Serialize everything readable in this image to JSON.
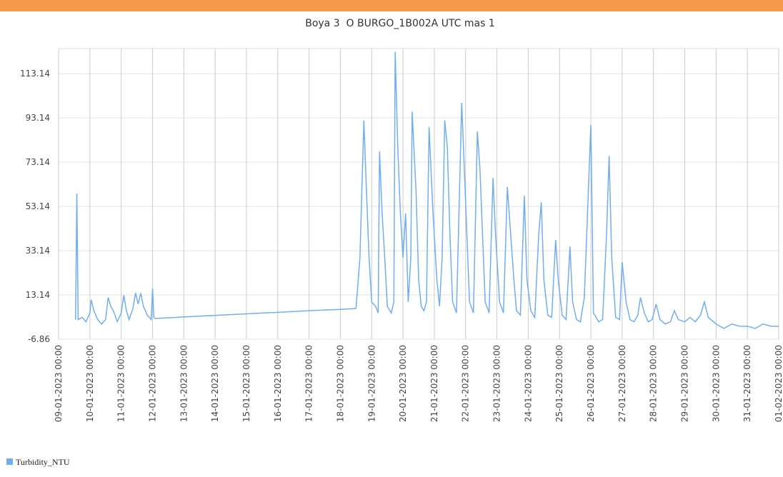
{
  "chart_data": {
    "type": "line",
    "title": "Boya 3  O BURGO_1B002A UTC mas 1",
    "x": [
      "09-01-2023 13:00",
      "09-01-2023 14:00",
      "09-01-2023 15:00",
      "09-01-2023 18:00",
      "09-01-2023 21:00",
      "10-01-2023 00:00",
      "10-01-2023 01:00",
      "10-01-2023 03:00",
      "10-01-2023 06:00",
      "10-01-2023 09:00",
      "10-01-2023 12:00",
      "10-01-2023 14:00",
      "10-01-2023 16:00",
      "10-01-2023 18:00",
      "10-01-2023 21:00",
      "11-01-2023 00:00",
      "11-01-2023 02:00",
      "11-01-2023 04:00",
      "11-01-2023 06:00",
      "11-01-2023 09:00",
      "11-01-2023 11:00",
      "11-01-2023 13:00",
      "11-01-2023 15:00",
      "11-01-2023 17:00",
      "11-01-2023 20:00",
      "11-01-2023 23:00",
      "12-01-2023 00:00",
      "12-01-2023 01:00",
      "12-01-2023 02:00",
      "13-01-2023 00:00",
      "14-01-2023 00:00",
      "15-01-2023 00:00",
      "16-01-2023 00:00",
      "17-01-2023 00:00",
      "18-01-2023 00:00",
      "18-01-2023 12:00",
      "18-01-2023 15:00",
      "18-01-2023 18:00",
      "18-01-2023 20:00",
      "18-01-2023 22:00",
      "19-01-2023 00:00",
      "19-01-2023 03:00",
      "19-01-2023 05:00",
      "19-01-2023 06:00",
      "19-01-2023 08:00",
      "19-01-2023 10:00",
      "19-01-2023 12:00",
      "19-01-2023 15:00",
      "19-01-2023 17:00",
      "19-01-2023 18:00",
      "19-01-2023 20:00",
      "19-01-2023 22:00",
      "20-01-2023 00:00",
      "20-01-2023 02:00",
      "20-01-2023 04:00",
      "20-01-2023 06:00",
      "20-01-2023 07:00",
      "20-01-2023 10:00",
      "20-01-2023 12:00",
      "20-01-2023 14:00",
      "20-01-2023 16:00",
      "20-01-2023 18:00",
      "20-01-2023 20:00",
      "20-01-2023 23:00",
      "21-01-2023 02:00",
      "21-01-2023 04:00",
      "21-01-2023 06:00",
      "21-01-2023 08:00",
      "21-01-2023 10:00",
      "21-01-2023 12:00",
      "21-01-2023 14:00",
      "21-01-2023 17:00",
      "21-01-2023 21:00",
      "21-01-2023 23:00",
      "22-01-2023 01:00",
      "22-01-2023 03:00",
      "22-01-2023 06:00",
      "22-01-2023 09:00",
      "22-01-2023 11:00",
      "22-01-2023 13:00",
      "22-01-2023 15:00",
      "22-01-2023 18:00",
      "22-01-2023 21:00",
      "22-01-2023 23:00",
      "23-01-2023 02:00",
      "23-01-2023 05:00",
      "23-01-2023 08:00",
      "23-01-2023 10:00",
      "23-01-2023 13:00",
      "23-01-2023 15:00",
      "23-01-2023 18:00",
      "23-01-2023 21:00",
      "23-01-2023 23:00",
      "24-01-2023 02:00",
      "24-01-2023 05:00",
      "24-01-2023 08:00",
      "24-01-2023 10:00",
      "24-01-2023 12:00",
      "24-01-2023 15:00",
      "24-01-2023 18:00",
      "24-01-2023 21:00",
      "24-01-2023 23:00",
      "25-01-2023 02:00",
      "25-01-2023 05:00",
      "25-01-2023 08:00",
      "25-01-2023 10:00",
      "25-01-2023 13:00",
      "25-01-2023 16:00",
      "25-01-2023 19:00",
      "26-01-2023 00:00",
      "26-01-2023 02:00",
      "26-01-2023 06:00",
      "26-01-2023 09:00",
      "26-01-2023 12:00",
      "26-01-2023 14:00",
      "26-01-2023 16:00",
      "26-01-2023 19:00",
      "26-01-2023 22:00",
      "27-01-2023 00:00",
      "27-01-2023 03:00",
      "27-01-2023 06:00",
      "27-01-2023 09:00",
      "27-01-2023 12:00",
      "27-01-2023 14:00",
      "27-01-2023 17:00",
      "27-01-2023 20:00",
      "27-01-2023 23:00",
      "28-01-2023 02:00",
      "28-01-2023 05:00",
      "28-01-2023 09:00",
      "28-01-2023 13:00",
      "28-01-2023 16:00",
      "28-01-2023 19:00",
      "29-01-2023 00:00",
      "29-01-2023 04:00",
      "29-01-2023 08:00",
      "29-01-2023 12:00",
      "29-01-2023 15:00",
      "29-01-2023 18:00",
      "30-01-2023 00:00",
      "30-01-2023 06:00",
      "30-01-2023 12:00",
      "30-01-2023 18:00",
      "31-01-2023 00:00",
      "31-01-2023 06:00",
      "31-01-2023 12:00",
      "31-01-2023 18:00",
      "01-02-2023 00:00"
    ],
    "series": [
      {
        "name": "Turbidity_NTU",
        "color": "#72aeee",
        "values": [
          2,
          59,
          2,
          3,
          1,
          5,
          11,
          6,
          2,
          0,
          2,
          12,
          8,
          6,
          1,
          5,
          13,
          6,
          2,
          7,
          14,
          9,
          14,
          8,
          4,
          2,
          16,
          3,
          2.5,
          3.2,
          3.9,
          4.6,
          5.3,
          6,
          6.6,
          7,
          30,
          92,
          60,
          30,
          10,
          8,
          5,
          78,
          50,
          30,
          8,
          5,
          10,
          123,
          80,
          50,
          30,
          50,
          10,
          30,
          96,
          60,
          20,
          8,
          6,
          10,
          89,
          50,
          20,
          8,
          30,
          92,
          80,
          40,
          10,
          5,
          100,
          70,
          40,
          10,
          5,
          87,
          70,
          40,
          10,
          5,
          66,
          40,
          10,
          5,
          62,
          45,
          20,
          6,
          4,
          58,
          20,
          6,
          3,
          40,
          55,
          20,
          4,
          3,
          38,
          20,
          4,
          2,
          35,
          10,
          2,
          1,
          12,
          90,
          5,
          1,
          2,
          40,
          76,
          30,
          3,
          2,
          28,
          10,
          2,
          1,
          4,
          12,
          5,
          1,
          2,
          9,
          2,
          0,
          1,
          6,
          2,
          1,
          3,
          1,
          4,
          10,
          3,
          0,
          -2,
          0,
          -1,
          -1,
          -2,
          0,
          -1,
          -1
        ]
      }
    ],
    "xlim": [
      "09-01-2023 00:00",
      "01-02-2023 00:00"
    ],
    "xticks": [
      "09-01-2023 00:00",
      "10-01-2023 00:00",
      "11-01-2023 00:00",
      "12-01-2023 00:00",
      "13-01-2023 00:00",
      "14-01-2023 00:00",
      "15-01-2023 00:00",
      "16-01-2023 00:00",
      "17-01-2023 00:00",
      "18-01-2023 00:00",
      "19-01-2023 00:00",
      "20-01-2023 00:00",
      "21-01-2023 00:00",
      "22-01-2023 00:00",
      "23-01-2023 00:00",
      "24-01-2023 00:00",
      "25-01-2023 00:00",
      "26-01-2023 00:00",
      "27-01-2023 00:00",
      "28-01-2023 00:00",
      "29-01-2023 00:00",
      "30-01-2023 00:00",
      "31-01-2023 00:00",
      "01-02-2023 00:00"
    ],
    "ylim": [
      -6.86,
      124.5
    ],
    "yticks": [
      -6.86,
      13.14,
      33.14,
      53.14,
      73.14,
      93.14,
      113.14
    ],
    "grid": true
  }
}
